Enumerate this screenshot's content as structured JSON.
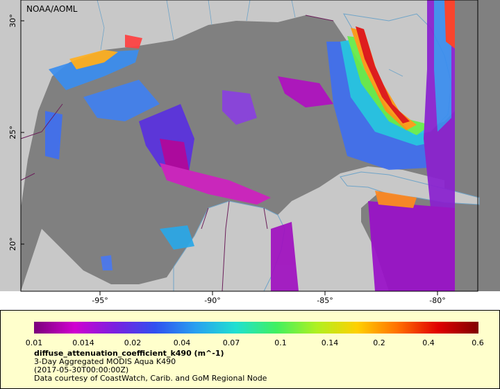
{
  "map": {
    "watermark": "NOAA/AOML",
    "lon_ticks": [
      "-95°",
      "-90°",
      "-85°",
      "-80°"
    ],
    "lat_ticks": [
      "30°",
      "25°",
      "20°"
    ],
    "colors": {
      "land": "#c8c8c8",
      "ocean_no_data": "#808080",
      "coast": "#6fa4c8",
      "border": "#6b1e5a"
    }
  },
  "legend": {
    "colorbar_ticks": [
      "0.01",
      "0.014",
      "0.02",
      "0.04",
      "0.07",
      "0.1",
      "0.14",
      "0.2",
      "0.4",
      "0.6"
    ],
    "variable": "diffuse_attenuation_coefficient_k490 (m^-1)",
    "product": "3-Day Aggregated MODIS Aqua K490",
    "date": "(2017-05-30T00:00:00Z)",
    "credit": "Data courtesy of CoastWatch, Carib. and GoM Regional Node",
    "colorbar_colors": [
      "#7a007a",
      "#d000d0",
      "#7a20e0",
      "#3050f0",
      "#28a0f0",
      "#20e0d0",
      "#40f060",
      "#b0f020",
      "#ffd000",
      "#ff7000",
      "#e00000",
      "#800000"
    ]
  }
}
